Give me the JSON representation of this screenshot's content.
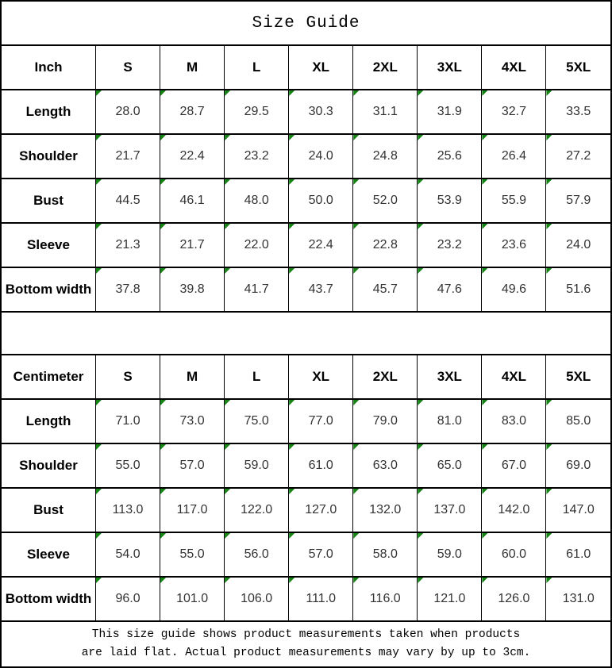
{
  "title": "Size Guide",
  "colors": {
    "cell_flag": "#158415",
    "border": "#000000",
    "background": "#ffffff"
  },
  "inch_table": {
    "unit": "Inch",
    "sizes": [
      "S",
      "M",
      "L",
      "XL",
      "2XL",
      "3XL",
      "4XL",
      "5XL"
    ],
    "rows": [
      {
        "label": "Length",
        "values": [
          "28.0",
          "28.7",
          "29.5",
          "30.3",
          "31.1",
          "31.9",
          "32.7",
          "33.5"
        ]
      },
      {
        "label": "Shoulder",
        "values": [
          "21.7",
          "22.4",
          "23.2",
          "24.0",
          "24.8",
          "25.6",
          "26.4",
          "27.2"
        ]
      },
      {
        "label": "Bust",
        "values": [
          "44.5",
          "46.1",
          "48.0",
          "50.0",
          "52.0",
          "53.9",
          "55.9",
          "57.9"
        ]
      },
      {
        "label": "Sleeve",
        "values": [
          "21.3",
          "21.7",
          "22.0",
          "22.4",
          "22.8",
          "23.2",
          "23.6",
          "24.0"
        ]
      },
      {
        "label": "Bottom width",
        "values": [
          "37.8",
          "39.8",
          "41.7",
          "43.7",
          "45.7",
          "47.6",
          "49.6",
          "51.6"
        ]
      }
    ]
  },
  "cm_table": {
    "unit": "Centimeter",
    "sizes": [
      "S",
      "M",
      "L",
      "XL",
      "2XL",
      "3XL",
      "4XL",
      "5XL"
    ],
    "rows": [
      {
        "label": "Length",
        "values": [
          "71.0",
          "73.0",
          "75.0",
          "77.0",
          "79.0",
          "81.0",
          "83.0",
          "85.0"
        ]
      },
      {
        "label": "Shoulder",
        "values": [
          "55.0",
          "57.0",
          "59.0",
          "61.0",
          "63.0",
          "65.0",
          "67.0",
          "69.0"
        ]
      },
      {
        "label": "Bust",
        "values": [
          "113.0",
          "117.0",
          "122.0",
          "127.0",
          "132.0",
          "137.0",
          "142.0",
          "147.0"
        ]
      },
      {
        "label": "Sleeve",
        "values": [
          "54.0",
          "55.0",
          "56.0",
          "57.0",
          "58.0",
          "59.0",
          "60.0",
          "61.0"
        ]
      },
      {
        "label": "Bottom width",
        "values": [
          "96.0",
          "101.0",
          "106.0",
          "111.0",
          "116.0",
          "121.0",
          "126.0",
          "131.0"
        ]
      }
    ]
  },
  "footer": {
    "line1": "This size guide shows product measurements taken when products",
    "line2": "are laid flat. Actual product measurements may vary by up to 3cm."
  },
  "chart_data": [
    {
      "type": "table",
      "title": "Size Guide (Inch)",
      "columns": [
        "Inch",
        "S",
        "M",
        "L",
        "XL",
        "2XL",
        "3XL",
        "4XL",
        "5XL"
      ],
      "rows": [
        [
          "Length",
          28.0,
          28.7,
          29.5,
          30.3,
          31.1,
          31.9,
          32.7,
          33.5
        ],
        [
          "Shoulder",
          21.7,
          22.4,
          23.2,
          24.0,
          24.8,
          25.6,
          26.4,
          27.2
        ],
        [
          "Bust",
          44.5,
          46.1,
          48.0,
          50.0,
          52.0,
          53.9,
          55.9,
          57.9
        ],
        [
          "Sleeve",
          21.3,
          21.7,
          22.0,
          22.4,
          22.8,
          23.2,
          23.6,
          24.0
        ],
        [
          "Bottom width",
          37.8,
          39.8,
          41.7,
          43.7,
          45.7,
          47.6,
          49.6,
          51.6
        ]
      ]
    },
    {
      "type": "table",
      "title": "Size Guide (Centimeter)",
      "columns": [
        "Centimeter",
        "S",
        "M",
        "L",
        "XL",
        "2XL",
        "3XL",
        "4XL",
        "5XL"
      ],
      "rows": [
        [
          "Length",
          71.0,
          73.0,
          75.0,
          77.0,
          79.0,
          81.0,
          83.0,
          85.0
        ],
        [
          "Shoulder",
          55.0,
          57.0,
          59.0,
          61.0,
          63.0,
          65.0,
          67.0,
          69.0
        ],
        [
          "Bust",
          113.0,
          117.0,
          122.0,
          127.0,
          132.0,
          137.0,
          142.0,
          147.0
        ],
        [
          "Sleeve",
          54.0,
          55.0,
          56.0,
          57.0,
          58.0,
          59.0,
          60.0,
          61.0
        ],
        [
          "Bottom width",
          96.0,
          101.0,
          106.0,
          111.0,
          116.0,
          121.0,
          126.0,
          131.0
        ]
      ]
    }
  ]
}
